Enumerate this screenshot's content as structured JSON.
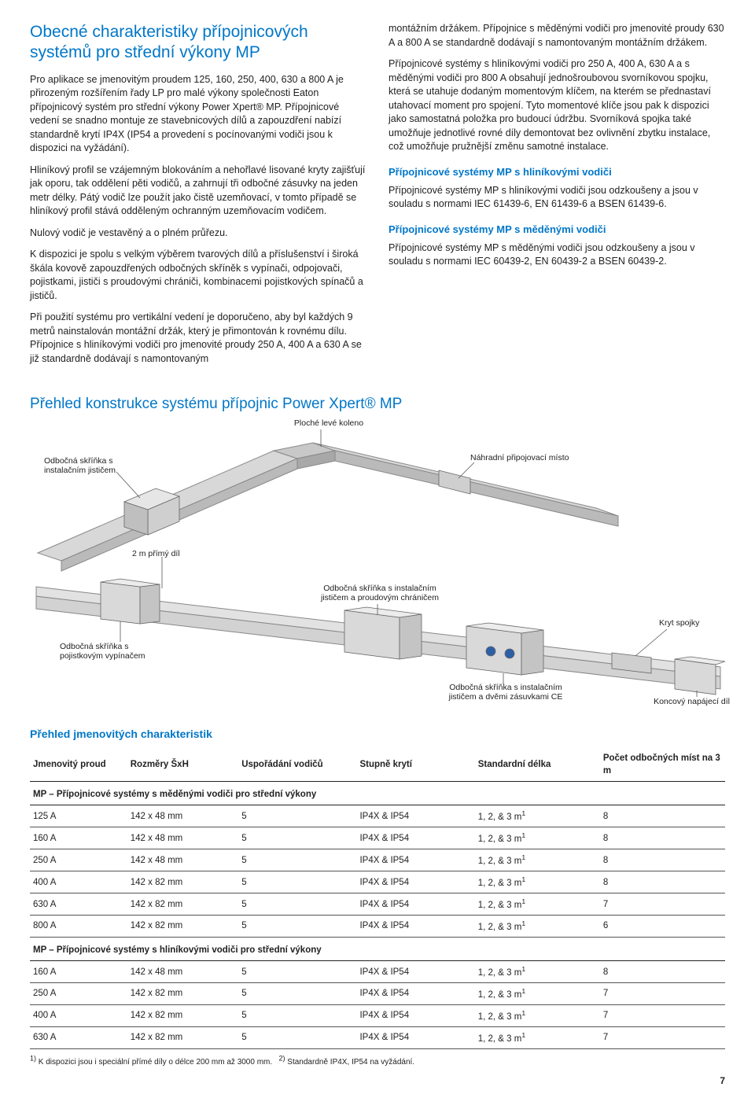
{
  "header": {
    "title": "Obecné charakteristiky přípojnicových systémů pro střední výkony MP"
  },
  "leftCol": {
    "p1": "Pro aplikace se jmenovitým proudem 125, 160, 250, 400, 630 a 800 A je přirozeným rozšířením řady LP pro malé výkony společnosti Eaton přípojnicový systém pro střední výkony Power Xpert® MP. Přípojnicové vedení se snadno montuje ze stavebnicových dílů a zapouzdření nabízí standardně krytí IP4X (IP54 a provedení s pocínovanými vodiči jsou k dispozici na vyžádání).",
    "p2": "Hliníkový profil se vzájemným blokováním a nehořlavé lisované kryty zajišťují jak oporu, tak oddělení pěti vodičů, a zahrnují tři odbočné zásuvky na jeden metr délky. Pátý vodič lze použít jako čistě uzemňovací, v tomto případě se hliníkový profil stává odděleným ochranným uzemňovacím vodičem.",
    "p3": "Nulový vodič je vestavěný a o plném průřezu.",
    "p4": "K dispozici je spolu s velkým výběrem tvarových dílů a příslušenství i široká škála kovově zapouzdřených odbočných skříněk s vypínači, odpojovači, pojistkami, jističi s proudovými chrániči, kombinacemi pojistkových spínačů a jističů.",
    "p5": "Při použití systému pro vertikální vedení je doporučeno, aby byl každých 9 metrů nainstalován montážní držák, který je přimontován k rovnému dílu. Přípojnice s hliníkovými vodiči pro jmenovité proudy 250 A, 400 A a 630 A se již standardně dodávají s namontovaným"
  },
  "rightCol": {
    "p1": "montážním držákem. Přípojnice s měděnými vodiči pro jmenovité proudy 630 A a 800 A se standardně dodávají s namontovaným montážním držákem.",
    "p2": "Přípojnicové systémy s hliníkovými vodiči pro 250 A, 400 A, 630 A a s měděnými vodiči pro 800 A obsahují jednošroubovou svorníkovou spojku, která se utahuje dodaným momentovým klíčem, na kterém se přednastaví utahovací moment pro spojení. Tyto momentové klíče jsou pak k dispozici jako samostatná položka pro budoucí údržbu. Svorníková spojka také umožňuje jednotlivé rovné díly demontovat bez ovlivnění zbytku instalace, což umožňuje pružnější změnu samotné instalace.",
    "h1": "Přípojnicové systémy MP s hliníkovými vodiči",
    "p3": "Přípojnicové systémy MP s hliníkovými vodiči jsou odzkoušeny a jsou v souladu s normami IEC 61439-6, EN 61439-6 a BSEN 61439-6.",
    "h2": "Přípojnicové systémy MP s měděnými vodiči",
    "p4": "Přípojnicové systémy MP s měděnými vodiči jsou odzkoušeny a jsou v souladu s normami IEC 60439-2, EN 60439-2 a BSEN 60439-2."
  },
  "diagram": {
    "title": "Přehled konstrukce systému přípojnic Power Xpert® MP",
    "labels": {
      "topElbow": "Ploché levé koleno",
      "breakerBox": "Odbočná skříňka s\ninstalačním jističem",
      "spare": "Náhradní připojovací místo",
      "straight": "2 m přímý díl",
      "fuseBox": "Odbočná skříňka s\npojistkovým vypínačem",
      "rcdBox": "Odbočná skříňka s instalačním\njističem a proudovým chráničem",
      "joint": "Kryt spojky",
      "ceBox": "Odbočná skříňka s instalačním\njističem a dvěmi zásuvkami CE",
      "endFeed": "Koncový napájecí díl"
    }
  },
  "table": {
    "title": "Přehled jmenovitých charakteristik",
    "columns": [
      "Jmenovitý proud",
      "Rozměry ŠxH",
      "Uspořádání vodičů",
      "Stupně krytí",
      "Standardní délka",
      "Počet odbočných míst na 3 m"
    ],
    "group1": "MP – Přípojnicové systémy s měděnými vodiči pro střední výkony",
    "rows1": [
      [
        "125 A",
        "142 x 48 mm",
        "5",
        "IP4X & IP54",
        "1, 2, & 3 m",
        "8"
      ],
      [
        "160 A",
        "142 x 48 mm",
        "5",
        "IP4X & IP54",
        "1, 2, & 3 m",
        "8"
      ],
      [
        "250 A",
        "142 x 48 mm",
        "5",
        "IP4X & IP54",
        "1, 2, & 3 m",
        "8"
      ],
      [
        "400 A",
        "142 x 82 mm",
        "5",
        "IP4X & IP54",
        "1, 2, & 3 m",
        "8"
      ],
      [
        "630 A",
        "142 x 82 mm",
        "5",
        "IP4X & IP54",
        "1, 2, & 3 m",
        "7"
      ],
      [
        "800 A",
        "142 x 82 mm",
        "5",
        "IP4X & IP54",
        "1, 2, & 3 m",
        "6"
      ]
    ],
    "group2": "MP – Přípojnicové systémy s hliníkovými vodiči pro střední výkony",
    "rows2": [
      [
        "160 A",
        "142 x 48 mm",
        "5",
        "IP4X & IP54",
        "1, 2, & 3 m",
        "8"
      ],
      [
        "250 A",
        "142 x 82 mm",
        "5",
        "IP4X & IP54",
        "1, 2, & 3 m",
        "7"
      ],
      [
        "400 A",
        "142 x 82 mm",
        "5",
        "IP4X & IP54",
        "1, 2, & 3 m",
        "7"
      ],
      [
        "630 A",
        "142 x 82 mm",
        "5",
        "IP4X & IP54",
        "1, 2, & 3 m",
        "7"
      ]
    ],
    "footnote1": "1) K dispozici jsou i speciální přímé díly o délce 200 mm až 3000 mm.",
    "footnote2": "2) Standardně IP4X, IP54 na vyžádání."
  },
  "pageNumber": "7",
  "colors": {
    "accent": "#0077c8",
    "text": "#222222",
    "rule": "#555555"
  }
}
